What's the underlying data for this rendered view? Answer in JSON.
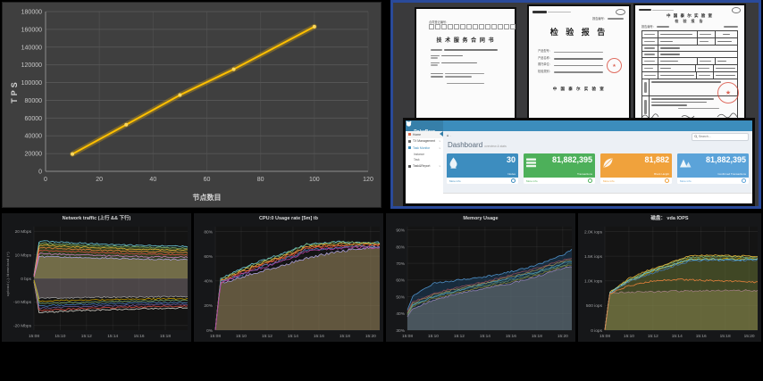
{
  "colors": {
    "tps_line": "#ffc000",
    "tps_bg": "#3f3f3f",
    "frame_border": "#2a4a9a",
    "docs_bg": "#3a3a3c",
    "stamp_red": "#d53e2d",
    "grafana_bg": "#161719",
    "adminlte_blue": "#3c8dbc"
  },
  "docs": {
    "contract": {
      "reg_label": "合同登记编号：",
      "title": "技 术 服 务 合 同 书"
    },
    "report_cover": {
      "org_header": "中国泰尔实验室",
      "report_no_label": "报告编号：",
      "title": "检  验  报  告",
      "fields": [
        "产品型号：",
        "产品名称：",
        "委托单位：",
        "检验类别："
      ],
      "org_footer": "中 国 泰 尔 实 验 室"
    },
    "report_page": {
      "org": "中 国 泰 尔 实 验 室",
      "subtitle": "检  验  报  告",
      "report_no_label": "报告编号："
    }
  },
  "dashboard": {
    "brand": "PolarBear",
    "heading": "Dashboard",
    "subheading": "overview & stats",
    "breadcrumb_home": "⌂",
    "search": {
      "placeholder": "Search..."
    },
    "sidebar": {
      "items": [
        {
          "label": "Home"
        },
        {
          "label": "TX Management"
        },
        {
          "label": "Task Monitor",
          "children": [
            {
              "label": "Instance"
            },
            {
              "label": "Task"
            }
          ]
        },
        {
          "label": "Task&Report"
        }
      ]
    },
    "cards": [
      {
        "value": "30",
        "label": "Nodes",
        "footer": "More info",
        "color": "#3d8dbf",
        "icon": "drop-icon"
      },
      {
        "value": "81,882,395",
        "label": "Transactions",
        "footer": "More info",
        "color": "#4db05a",
        "icon": "list-icon"
      },
      {
        "value": "81,882",
        "label": "Block Height",
        "footer": "More info",
        "color": "#f0a23c",
        "icon": "leaf-icon"
      },
      {
        "value": "81,882,395",
        "label": "Confirmed Transactions",
        "footer": "More info",
        "color": "#5ba3d9",
        "icon": "mountain-icon"
      }
    ]
  },
  "chart_data": [
    {
      "id": "tps",
      "type": "line",
      "title": "",
      "xlabel": "节点数目",
      "ylabel": "TPS",
      "x": [
        10,
        30,
        50,
        70,
        100
      ],
      "values": [
        19500,
        52500,
        86000,
        115000,
        163000
      ],
      "xlim": [
        0,
        120
      ],
      "xticks": [
        0,
        20,
        40,
        60,
        80,
        100,
        120
      ],
      "ylim": [
        0,
        180000
      ],
      "yticks": [
        0,
        20000,
        40000,
        60000,
        80000,
        100000,
        120000,
        140000,
        160000,
        180000
      ],
      "grid": true,
      "line_color": "#ffc000",
      "legend": "none"
    },
    {
      "id": "network",
      "type": "area",
      "title": "Network traffic (上行 && 下行)",
      "ylabel": "upload (-)  /download (+)",
      "xlim": [
        0,
        11.7
      ],
      "ylim": [
        -22,
        22
      ],
      "base": 0,
      "jitter": 0.3,
      "margin_left": 36,
      "seed": 3,
      "xticks": [
        [
          0,
          "15:08"
        ],
        [
          2,
          "15:10"
        ],
        [
          4,
          "15:12"
        ],
        [
          6,
          "15:14"
        ],
        [
          8,
          "15:16"
        ],
        [
          10,
          "15:18"
        ]
      ],
      "yticks": [
        [
          20,
          "20 Mbps"
        ],
        [
          10,
          "10 Mbps"
        ],
        [
          0,
          "0 bps"
        ],
        [
          -10,
          "-10 Mbps"
        ],
        [
          -20,
          "-20 Mbps"
        ]
      ],
      "xs": [
        0,
        0.4,
        2,
        4,
        6,
        8,
        10,
        11.7
      ],
      "series": [
        {
          "c": "#7EB26D",
          "v": [
            1.2,
            15.1,
            14.6,
            14.1,
            13.7,
            13.3,
            13.1,
            12.9
          ],
          "f": {
            "c": "#55702f",
            "o": 0.45
          }
        },
        {
          "c": "#AEA2E0",
          "v": [
            0.6,
            9.3,
            9.1,
            8.8,
            8.5,
            8.3,
            8.1,
            8.0
          ],
          "f": {
            "c": "#a8916a",
            "o": 0.55
          }
        },
        {
          "c": "#9E9E9E",
          "v": [
            -0.6,
            -8.5,
            -8.3,
            -8.1,
            -8.0,
            -7.9,
            -7.8,
            -7.7
          ],
          "f": {
            "c": "#8d8086",
            "o": 0.45
          }
        },
        {
          "c": "#6ED0E0",
          "v": [
            1.5,
            16.0,
            15.4,
            14.9,
            14.4,
            14.0,
            13.8,
            13.6
          ]
        },
        {
          "c": "#EAB839",
          "v": [
            1.0,
            14.2,
            13.7,
            13.2,
            12.8,
            12.4,
            12.2,
            12.0
          ]
        },
        {
          "c": "#EF843C",
          "v": [
            0.9,
            13.1,
            12.6,
            12.2,
            11.8,
            11.4,
            11.2,
            11.0
          ]
        },
        {
          "c": "#E24D42",
          "v": [
            0.8,
            12.0,
            11.6,
            11.2,
            10.8,
            10.4,
            10.2,
            10.0
          ]
        },
        {
          "c": "#D683CE",
          "v": [
            0.7,
            10.6,
            10.3,
            9.9,
            9.6,
            9.3,
            9.1,
            9.0
          ]
        },
        {
          "c": "#E0DCD3",
          "v": [
            -1.5,
            -14.6,
            -14.1,
            -13.6,
            -13.2,
            -12.9,
            -12.7,
            -12.5
          ]
        },
        {
          "c": "#E24D42",
          "v": [
            -1.2,
            -13.7,
            -13.2,
            -12.8,
            -12.4,
            -12.1,
            -11.9,
            -11.7
          ]
        },
        {
          "c": "#705DA0",
          "v": [
            -1.0,
            -12.7,
            -12.3,
            -11.9,
            -11.6,
            -11.3,
            -11.1,
            -11.0
          ]
        },
        {
          "c": "#447EBC",
          "v": [
            -0.9,
            -11.7,
            -11.4,
            -11.0,
            -10.7,
            -10.5,
            -10.3,
            -10.2
          ]
        },
        {
          "c": "#7EB26D",
          "v": [
            -0.8,
            -10.7,
            -10.4,
            -10.1,
            -9.8,
            -9.6,
            -9.4,
            -9.3
          ]
        },
        {
          "c": "#CCA300",
          "v": [
            -0.7,
            -9.7,
            -9.4,
            -9.2,
            -9.0,
            -8.8,
            -8.7,
            -8.6
          ]
        }
      ]
    },
    {
      "id": "cpu",
      "type": "area",
      "title": "CPU:0 Usage rate [5m] tb",
      "ylabel": "",
      "xlim": [
        0,
        12.7
      ],
      "ylim": [
        0,
        84
      ],
      "base": 0,
      "jitter": 1.0,
      "margin_left": 24,
      "seed": 7,
      "xticks": [
        [
          0,
          "15:08"
        ],
        [
          2,
          "15:10"
        ],
        [
          4,
          "15:12"
        ],
        [
          6,
          "15:14"
        ],
        [
          8,
          "15:16"
        ],
        [
          10,
          "15:18"
        ],
        [
          12,
          "15:20"
        ]
      ],
      "yticks": [
        [
          0,
          "0%"
        ],
        [
          20,
          "20%"
        ],
        [
          40,
          "40%"
        ],
        [
          60,
          "60%"
        ],
        [
          80,
          "80%"
        ]
      ],
      "xs": [
        0,
        0.4,
        2,
        4,
        6,
        7,
        9,
        11,
        12.7
      ],
      "series": [
        {
          "c": "#AEA2E0",
          "v": [
            0,
            38,
            43,
            49,
            55,
            58,
            63,
            66,
            68
          ],
          "f": {
            "c": "#95825a",
            "o": 0.6
          }
        },
        {
          "c": "#6ED0E0",
          "v": [
            0,
            42,
            50,
            58,
            65,
            70,
            72,
            71,
            71
          ]
        },
        {
          "c": "#7EB26D",
          "v": [
            0,
            41,
            49,
            57,
            64,
            69,
            71,
            71,
            70
          ]
        },
        {
          "c": "#EAB839",
          "v": [
            0,
            40,
            48,
            56,
            63,
            68,
            70,
            70,
            70
          ]
        },
        {
          "c": "#EF843C",
          "v": [
            0,
            40,
            47,
            55,
            62,
            67,
            69,
            69,
            69
          ]
        },
        {
          "c": "#E24D42",
          "v": [
            0,
            39,
            46,
            54,
            61,
            66,
            68,
            68,
            69
          ]
        },
        {
          "c": "#447EBC",
          "v": [
            0,
            39,
            45,
            53,
            60,
            65,
            67,
            68,
            68
          ]
        },
        {
          "c": "#BA43A9",
          "v": [
            0,
            38,
            45,
            52,
            59,
            64,
            66,
            67,
            67
          ]
        }
      ]
    },
    {
      "id": "memory",
      "type": "area",
      "title": "Memory Usage",
      "ylabel": "",
      "xlim": [
        0,
        12.7
      ],
      "ylim": [
        30,
        92
      ],
      "base": 30,
      "jitter": 0.5,
      "margin_left": 24,
      "seed": 11,
      "xticks": [
        [
          0,
          "15:08"
        ],
        [
          2,
          "15:10"
        ],
        [
          4,
          "15:12"
        ],
        [
          6,
          "15:14"
        ],
        [
          8,
          "15:16"
        ],
        [
          10,
          "15:18"
        ],
        [
          12,
          "15:20"
        ]
      ],
      "yticks": [
        [
          30,
          "30%"
        ],
        [
          40,
          "40%"
        ],
        [
          50,
          "50%"
        ],
        [
          60,
          "60%"
        ],
        [
          70,
          "70%"
        ],
        [
          80,
          "80%"
        ],
        [
          90,
          "90%"
        ]
      ],
      "xs": [
        0,
        0.4,
        2,
        4,
        6,
        8,
        10,
        12,
        12.7
      ],
      "series": [
        {
          "c": "#E5A8E2",
          "v": [
            38,
            43,
            48,
            52,
            55,
            58,
            62,
            67,
            68
          ],
          "f": {
            "c": "#a99579",
            "o": 0.55
          }
        },
        {
          "c": "#CCA300",
          "v": [
            39,
            44,
            49,
            53,
            56,
            59,
            63,
            68,
            69
          ]
        },
        {
          "c": "#7EB26D",
          "v": [
            39,
            45,
            50,
            54,
            57,
            60,
            64,
            69,
            70
          ]
        },
        {
          "c": "#6ED0E0",
          "v": [
            40,
            45,
            50,
            54,
            58,
            61,
            65,
            70,
            71
          ]
        },
        {
          "c": "#EAB839",
          "v": [
            40,
            46,
            51,
            55,
            58,
            62,
            66,
            71,
            72
          ]
        },
        {
          "c": "#E24D42",
          "v": [
            41,
            47,
            52,
            56,
            59,
            63,
            67,
            72,
            73
          ]
        },
        {
          "c": "#5195CE",
          "v": [
            42,
            50,
            58,
            60,
            62,
            65,
            69,
            75,
            78
          ],
          "f": {
            "c": "#1f4e79",
            "o": 0.4
          }
        }
      ]
    },
    {
      "id": "disk_iops",
      "type": "area",
      "title": "磁盘： vda IOPS",
      "ylabel": "",
      "xlim": [
        0,
        12.7
      ],
      "ylim": [
        0,
        2100
      ],
      "base": 0,
      "jitter": 18,
      "margin_left": 30,
      "seed": 17,
      "xticks": [
        [
          0,
          "15:08"
        ],
        [
          2,
          "15:10"
        ],
        [
          4,
          "15:12"
        ],
        [
          6,
          "15:14"
        ],
        [
          8,
          "15:16"
        ],
        [
          10,
          "15:18"
        ],
        [
          12,
          "15:20"
        ]
      ],
      "yticks": [
        [
          0,
          "0 iops"
        ],
        [
          500,
          "500 iops"
        ],
        [
          1000,
          "1.0K iops"
        ],
        [
          1500,
          "1.5K iops"
        ],
        [
          2000,
          "2.0K iops"
        ]
      ],
      "xs": [
        0,
        0.4,
        2,
        4,
        6,
        7,
        9,
        11,
        12.7
      ],
      "series": [
        {
          "c": "#D683CE",
          "v": [
            0,
            755,
            770,
            780,
            790,
            795,
            800,
            805,
            805
          ],
          "f": {
            "c": "#a8916a",
            "o": 0.5
          }
        },
        {
          "c": "#7EB26D",
          "v": [
            0,
            755,
            1030,
            1230,
            1400,
            1480,
            1500,
            1490,
            1480
          ],
          "f": {
            "c": "#6b7a35",
            "o": 0.5
          }
        },
        {
          "c": "#EAB839",
          "v": [
            0,
            760,
            1050,
            1250,
            1420,
            1500,
            1520,
            1505,
            1495
          ]
        },
        {
          "c": "#CCA300",
          "v": [
            0,
            745,
            1000,
            1190,
            1340,
            1430,
            1450,
            1440,
            1450
          ]
        },
        {
          "c": "#6ED0E0",
          "v": [
            0,
            750,
            1010,
            1200,
            1360,
            1430,
            1440,
            1430,
            1445
          ]
        },
        {
          "c": "#447EBC",
          "v": [
            0,
            740,
            980,
            1160,
            1320,
            1400,
            1420,
            1415,
            1425
          ]
        },
        {
          "c": "#EF843C",
          "v": [
            0,
            735,
            900,
            1000,
            1030,
            1020,
            1000,
            985,
            965
          ]
        }
      ]
    }
  ]
}
